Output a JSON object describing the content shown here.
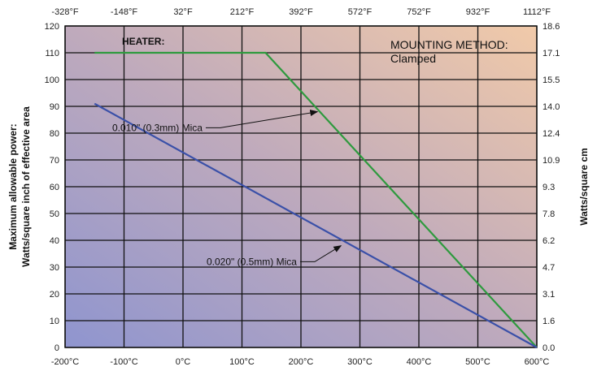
{
  "chart_data": {
    "type": "line",
    "x_bottom_unit": "°C",
    "xlim": [
      -200,
      600
    ],
    "ylim": [
      0,
      120
    ],
    "x_bottom_ticks": [
      "-200°C",
      "-100°C",
      "0°C",
      "100°C",
      "200°C",
      "300°C",
      "400°C",
      "500°C",
      "600°C"
    ],
    "x_top_ticks": [
      "-328°F",
      "-148°F",
      "32°F",
      "212°F",
      "392°F",
      "572°F",
      "752°F",
      "932°F",
      "1112°F"
    ],
    "y_left_ticks": [
      "0",
      "10",
      "20",
      "30",
      "40",
      "50",
      "60",
      "70",
      "80",
      "90",
      "100",
      "110",
      "120"
    ],
    "y_right_ticks": [
      "0.0",
      "1.6",
      "3.1",
      "4.7",
      "6.2",
      "7.8",
      "9.3",
      "10.9",
      "12.4",
      "14.0",
      "15.5",
      "17.1",
      "18.6"
    ],
    "ylabel_left_line1": "Maximum allowable power:",
    "ylabel_left_line2": "Watts/square inch of effective area",
    "ylabel_right": "Watts/square cm",
    "heater_label": "HEATER:",
    "mounting_label_line1": "MOUNTING METHOD:",
    "mounting_label_line2": "Clamped",
    "grid": true,
    "series": [
      {
        "name": "0.010\" (0.3mm) Mica",
        "color": "#2e9a3e",
        "x": [
          -150,
          140,
          600
        ],
        "y": [
          110,
          110,
          0
        ],
        "annotation": {
          "text": "0.010\" (0.3mm) Mica",
          "text_x": -120,
          "text_y": 82,
          "arrow_to_x": 228,
          "arrow_to_y": 88
        }
      },
      {
        "name": "0.020\" (0.5mm) Mica",
        "color": "#3a50a8",
        "x": [
          -150,
          600
        ],
        "y": [
          91,
          0
        ],
        "annotation": {
          "text": "0.020\" (0.5mm) Mica",
          "text_x": 40,
          "text_y": 32,
          "arrow_to_x": 268,
          "arrow_to_y": 38
        }
      }
    ]
  }
}
